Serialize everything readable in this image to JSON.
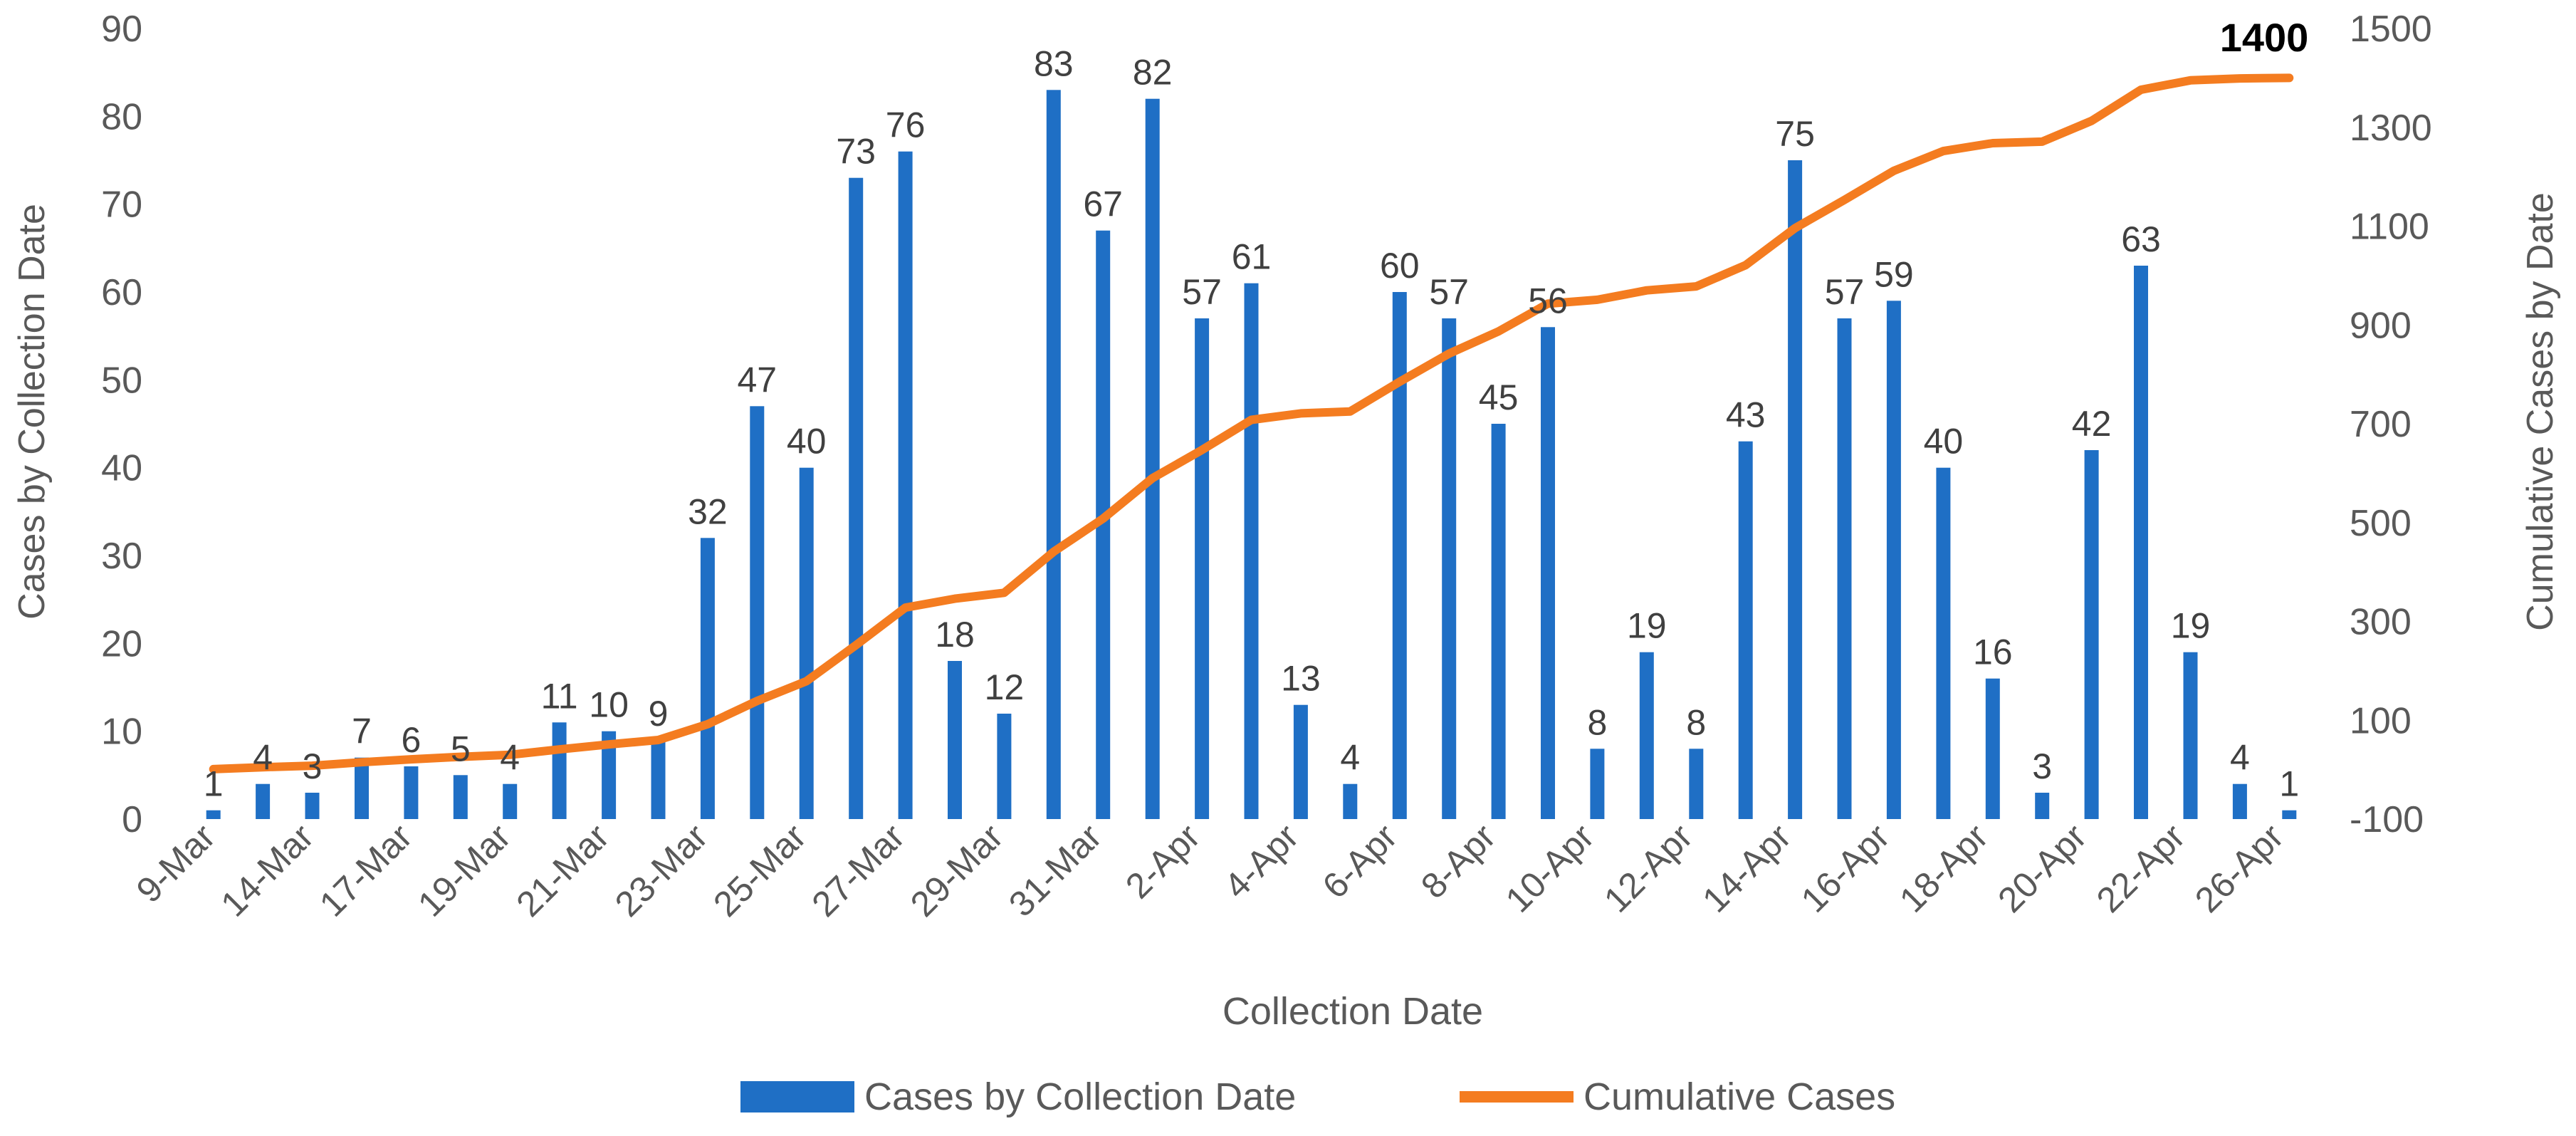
{
  "chart_data": {
    "type": "bar+line",
    "title": "",
    "xlabel": "Collection Date",
    "ylabel": "Cases by Collection Date",
    "y2label": "Cumulative Cases by Date",
    "ylim": [
      0,
      90
    ],
    "y2lim": [
      -100,
      1500
    ],
    "yticks": [
      "0",
      "10",
      "20",
      "30",
      "40",
      "50",
      "60",
      "70",
      "80",
      "90"
    ],
    "y2ticks": [
      "-100",
      "100",
      "300",
      "500",
      "700",
      "900",
      "1100",
      "1300",
      "1500"
    ],
    "xticks": [
      "9-Mar",
      "14-Mar",
      "17-Mar",
      "19-Mar",
      "21-Mar",
      "23-Mar",
      "25-Mar",
      "27-Mar",
      "29-Mar",
      "31-Mar",
      "2-Apr",
      "4-Apr",
      "6-Apr",
      "8-Apr",
      "10-Apr",
      "12-Apr",
      "14-Apr",
      "16-Apr",
      "18-Apr",
      "20-Apr",
      "22-Apr",
      "26-Apr"
    ],
    "bar_count": 43,
    "series": [
      {
        "name": "Cases by Collection Date",
        "kind": "bar",
        "axis": "left",
        "color": "#1f6fc5",
        "values": [
          1,
          4,
          3,
          7,
          6,
          5,
          4,
          11,
          10,
          9,
          32,
          47,
          40,
          73,
          76,
          18,
          12,
          83,
          67,
          82,
          57,
          61,
          13,
          4,
          60,
          57,
          45,
          56,
          8,
          19,
          8,
          43,
          75,
          57,
          59,
          40,
          16,
          3,
          42,
          63,
          19,
          4,
          1
        ]
      },
      {
        "name": "Cumulative Cases",
        "kind": "line",
        "axis": "right",
        "color": "#f47c20",
        "values": [
          1,
          5,
          8,
          15,
          21,
          26,
          30,
          41,
          51,
          60,
          92,
          139,
          179,
          252,
          328,
          346,
          358,
          441,
          508,
          590,
          647,
          708,
          721,
          725,
          785,
          842,
          887,
          943,
          951,
          970,
          978,
          1021,
          1096,
          1153,
          1212,
          1252,
          1268,
          1271,
          1313,
          1376,
          1395,
          1399,
          1400
        ]
      }
    ],
    "annotation": "1400",
    "legend_position": "bottom"
  }
}
